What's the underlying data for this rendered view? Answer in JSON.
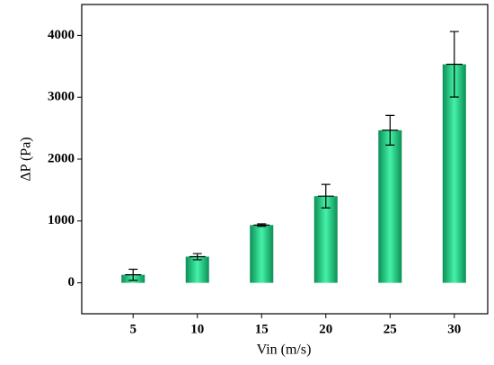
{
  "chart_data": {
    "type": "bar",
    "xlabel": "Vin (m/s)",
    "ylabel": "ΔP (Pa)",
    "x": [
      5,
      10,
      15,
      20,
      25,
      30
    ],
    "values": [
      130,
      423,
      934,
      1401,
      2467,
      3533
    ],
    "errors": [
      90,
      50,
      20,
      190,
      240,
      530
    ],
    "color": "#1fcf80",
    "xlim": [
      1,
      32.6
    ],
    "xticks": [
      5,
      10,
      15,
      20,
      25,
      30
    ],
    "ylim": [
      -500,
      4500
    ],
    "yticks": [
      0,
      1000,
      2000,
      3000,
      4000
    ],
    "grid": false
  }
}
